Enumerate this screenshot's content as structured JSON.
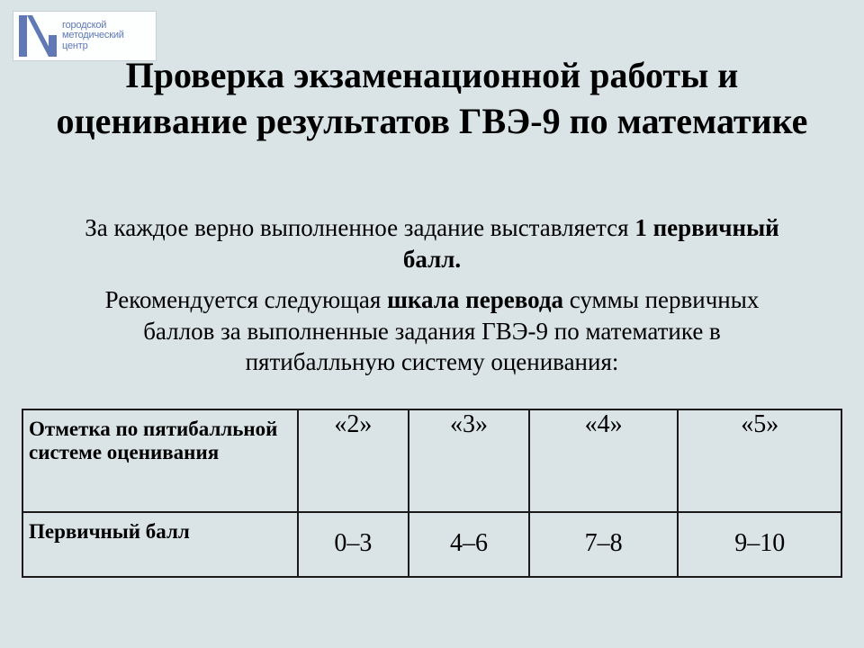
{
  "logo": {
    "line1": "городской",
    "line2": "методический",
    "line3": "центр",
    "color": "#5f78b4"
  },
  "title": "Проверка экзаменационной работы и оценивание результатов ГВЭ-9 по математике",
  "paragraph1": {
    "prefix": "За каждое верно выполненное задание выставляется ",
    "bold": "1 первичный балл."
  },
  "paragraph2": {
    "prefix": "Рекомендуется следующая ",
    "bold": "шкала перевода",
    "suffix": " суммы первичных баллов за выполненные задания ГВЭ-9 по математике в пятибалльную систему оценивания:"
  },
  "table": {
    "row_label_1a": "Отметка по пятибалльной",
    "row_label_1b": " системе оценивания",
    "row_label_2": "Первичный балл",
    "marks": [
      "«2»",
      "«3»",
      "«4»",
      "«5»"
    ],
    "scores": [
      "0–3",
      "4–6",
      "7–8",
      "9–10"
    ]
  },
  "style": {
    "background": "#dae3e6",
    "text_color": "#000000",
    "border_color": "#1a1a1a",
    "title_fontsize": 40,
    "body_fontsize": 27,
    "table_header_fontsize": 23,
    "table_value_fontsize": 28
  }
}
